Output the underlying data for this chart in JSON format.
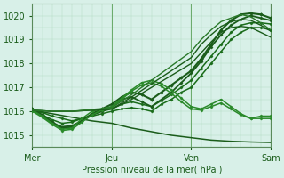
{
  "background_color": "#d8f0e8",
  "plot_bg_color": "#d8f0e8",
  "grid_color": "#b0d8c0",
  "line_color_dark": "#1a5c1a",
  "xlabel": "Pression niveau de la mer( hPa )",
  "ylim": [
    1014.5,
    1020.5
  ],
  "yticks": [
    1015,
    1016,
    1017,
    1018,
    1019,
    1020
  ],
  "xlim": [
    0,
    72
  ],
  "xtick_positions": [
    0,
    24,
    48,
    72
  ],
  "xtick_labels": [
    "Mer",
    "Jeu",
    "Ven",
    "Sam"
  ],
  "series": [
    {
      "x": [
        0,
        6,
        12,
        18,
        24,
        30,
        36,
        42,
        48,
        54,
        60,
        66,
        72
      ],
      "y": [
        1016.05,
        1015.9,
        1015.75,
        1015.6,
        1015.5,
        1015.3,
        1015.15,
        1015.0,
        1014.9,
        1014.8,
        1014.75,
        1014.72,
        1014.7
      ],
      "color": "#1a5c1a",
      "lw": 1.1,
      "marker": null
    },
    {
      "x": [
        0,
        3,
        6,
        9,
        12,
        15,
        18,
        21,
        24,
        27,
        30,
        33,
        36,
        39,
        42,
        45,
        48,
        51,
        54,
        57,
        60,
        63,
        66,
        69,
        72
      ],
      "y": [
        1016.0,
        1015.95,
        1015.8,
        1015.7,
        1015.6,
        1015.7,
        1015.8,
        1015.9,
        1016.0,
        1016.1,
        1016.15,
        1016.1,
        1016.0,
        1016.3,
        1016.5,
        1016.8,
        1017.0,
        1017.5,
        1018.0,
        1018.5,
        1019.0,
        1019.3,
        1019.5,
        1019.5,
        1019.4
      ],
      "color": "#1a6c1a",
      "lw": 1.1,
      "marker": "D",
      "markersize": 1.5
    },
    {
      "x": [
        0,
        3,
        6,
        9,
        12,
        15,
        18,
        21,
        24,
        27,
        30,
        33,
        36,
        39,
        42,
        45,
        48,
        51,
        54,
        57,
        60,
        63,
        66,
        69,
        72
      ],
      "y": [
        1016.05,
        1015.85,
        1015.65,
        1015.5,
        1015.55,
        1015.7,
        1015.85,
        1016.0,
        1016.1,
        1016.3,
        1016.4,
        1016.3,
        1016.2,
        1016.45,
        1016.7,
        1017.0,
        1017.3,
        1017.8,
        1018.3,
        1018.8,
        1019.3,
        1019.6,
        1019.7,
        1019.7,
        1019.65
      ],
      "color": "#1a6c1a",
      "lw": 1.1,
      "marker": "D",
      "markersize": 1.5
    },
    {
      "x": [
        0,
        3,
        6,
        9,
        12,
        15,
        18,
        21,
        24,
        27,
        30,
        33,
        36,
        39,
        42,
        45,
        48,
        51,
        54,
        57,
        60,
        63,
        66,
        69,
        72
      ],
      "y": [
        1016.1,
        1015.8,
        1015.5,
        1015.35,
        1015.4,
        1015.6,
        1015.85,
        1016.0,
        1016.2,
        1016.5,
        1016.6,
        1016.4,
        1016.2,
        1016.5,
        1016.8,
        1017.2,
        1017.6,
        1018.1,
        1018.7,
        1019.2,
        1019.6,
        1019.85,
        1020.0,
        1019.9,
        1019.8
      ],
      "color": "#1a5c1a",
      "lw": 1.3,
      "marker": "D",
      "markersize": 1.5
    },
    {
      "x": [
        0,
        3,
        6,
        9,
        12,
        15,
        18,
        21,
        24,
        27,
        30,
        33,
        36,
        39,
        42,
        45,
        48,
        51,
        54,
        57,
        60,
        63,
        66,
        69,
        72
      ],
      "y": [
        1016.1,
        1015.85,
        1015.55,
        1015.3,
        1015.35,
        1015.6,
        1015.9,
        1016.1,
        1016.3,
        1016.6,
        1016.8,
        1016.7,
        1016.5,
        1016.8,
        1017.1,
        1017.4,
        1017.7,
        1018.2,
        1018.8,
        1019.4,
        1019.8,
        1020.05,
        1020.1,
        1020.05,
        1019.9
      ],
      "color": "#1a5c1a",
      "lw": 1.5,
      "marker": "D",
      "markersize": 1.8
    },
    {
      "x": [
        0,
        3,
        6,
        9,
        12,
        15,
        18,
        21,
        24,
        27,
        30,
        33,
        36,
        39,
        42,
        45,
        48,
        51,
        54,
        57,
        60,
        63,
        66,
        69,
        72
      ],
      "y": [
        1016.05,
        1015.8,
        1015.5,
        1015.25,
        1015.3,
        1015.7,
        1016.0,
        1016.1,
        1016.2,
        1016.55,
        1016.9,
        1017.2,
        1017.3,
        1017.15,
        1016.9,
        1016.55,
        1016.2,
        1016.1,
        1016.3,
        1016.5,
        1016.2,
        1015.9,
        1015.7,
        1015.7,
        1015.7
      ],
      "color": "#2a8a2a",
      "lw": 1.1,
      "marker": "D",
      "markersize": 1.5
    },
    {
      "x": [
        0,
        3,
        6,
        9,
        12,
        15,
        18,
        21,
        24,
        27,
        30,
        33,
        36,
        39,
        42,
        45,
        48,
        51,
        54,
        57,
        60,
        63,
        66,
        69,
        72
      ],
      "y": [
        1016.0,
        1015.75,
        1015.45,
        1015.2,
        1015.25,
        1015.55,
        1015.85,
        1016.05,
        1016.15,
        1016.5,
        1016.85,
        1017.1,
        1017.2,
        1017.05,
        1016.75,
        1016.4,
        1016.1,
        1016.05,
        1016.2,
        1016.35,
        1016.1,
        1015.85,
        1015.7,
        1015.8,
        1015.8
      ],
      "color": "#2a8a2a",
      "lw": 1.1,
      "marker": "D",
      "markersize": 1.5
    },
    {
      "x": [
        0,
        6,
        12,
        18,
        24,
        30,
        36,
        42,
        48,
        54,
        57,
        60,
        63,
        66,
        69,
        72
      ],
      "y": [
        1016.05,
        1016.0,
        1016.0,
        1016.05,
        1016.1,
        1016.5,
        1017.0,
        1017.5,
        1018.0,
        1018.9,
        1019.3,
        1019.5,
        1019.55,
        1019.5,
        1019.3,
        1019.1
      ],
      "color": "#1a5c1a",
      "lw": 1.0,
      "marker": null
    },
    {
      "x": [
        0,
        6,
        12,
        18,
        24,
        30,
        36,
        42,
        48,
        51,
        54,
        57,
        60,
        63,
        66,
        69,
        72
      ],
      "y": [
        1016.05,
        1016.0,
        1016.0,
        1016.05,
        1016.1,
        1016.6,
        1017.15,
        1017.7,
        1018.25,
        1018.8,
        1019.2,
        1019.55,
        1019.75,
        1019.85,
        1019.8,
        1019.6,
        1019.35
      ],
      "color": "#1a5c1a",
      "lw": 1.0,
      "marker": null
    },
    {
      "x": [
        0,
        6,
        12,
        18,
        24,
        30,
        36,
        42,
        48,
        51,
        54,
        57,
        60,
        63,
        66,
        69,
        72
      ],
      "y": [
        1016.05,
        1016.0,
        1016.0,
        1016.08,
        1016.15,
        1016.7,
        1017.3,
        1017.9,
        1018.5,
        1019.0,
        1019.4,
        1019.75,
        1019.9,
        1020.05,
        1019.95,
        1019.7,
        1019.4
      ],
      "color": "#2a7a2a",
      "lw": 1.0,
      "marker": null
    }
  ],
  "vline_positions": [
    24,
    48,
    72
  ],
  "vline_color": "#6aaa6a"
}
